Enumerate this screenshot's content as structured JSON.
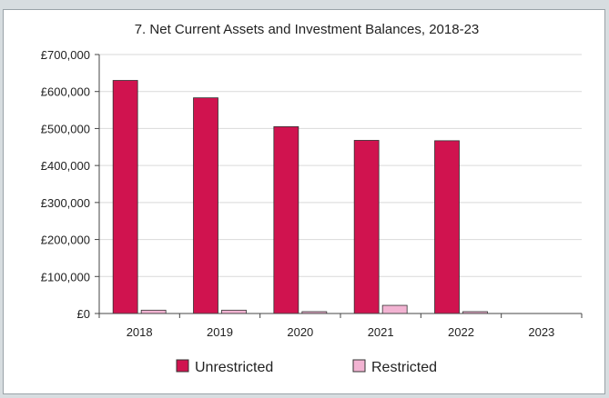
{
  "chart_data": {
    "type": "bar",
    "title": "7. Net Current Assets and Investment Balances, 2018-23",
    "xlabel": "",
    "ylabel": "",
    "categories": [
      "2018",
      "2019",
      "2020",
      "2021",
      "2022",
      "2023"
    ],
    "series": [
      {
        "name": "Unrestricted",
        "values": [
          630000,
          583000,
          505000,
          468000,
          467000,
          0
        ],
        "color": "#d0134f"
      },
      {
        "name": "Restricted",
        "values": [
          9000,
          9000,
          5000,
          22000,
          5000,
          0
        ],
        "color": "#f2b3d2"
      }
    ],
    "ylim": [
      0,
      700000
    ],
    "yticks": [
      0,
      100000,
      200000,
      300000,
      400000,
      500000,
      600000,
      700000
    ],
    "ytick_labels": [
      "£0",
      "£100,000",
      "£200,000",
      "£300,000",
      "£400,000",
      "£500,000",
      "£600,000",
      "£700,000"
    ],
    "grid": true,
    "legend_position": "bottom"
  }
}
